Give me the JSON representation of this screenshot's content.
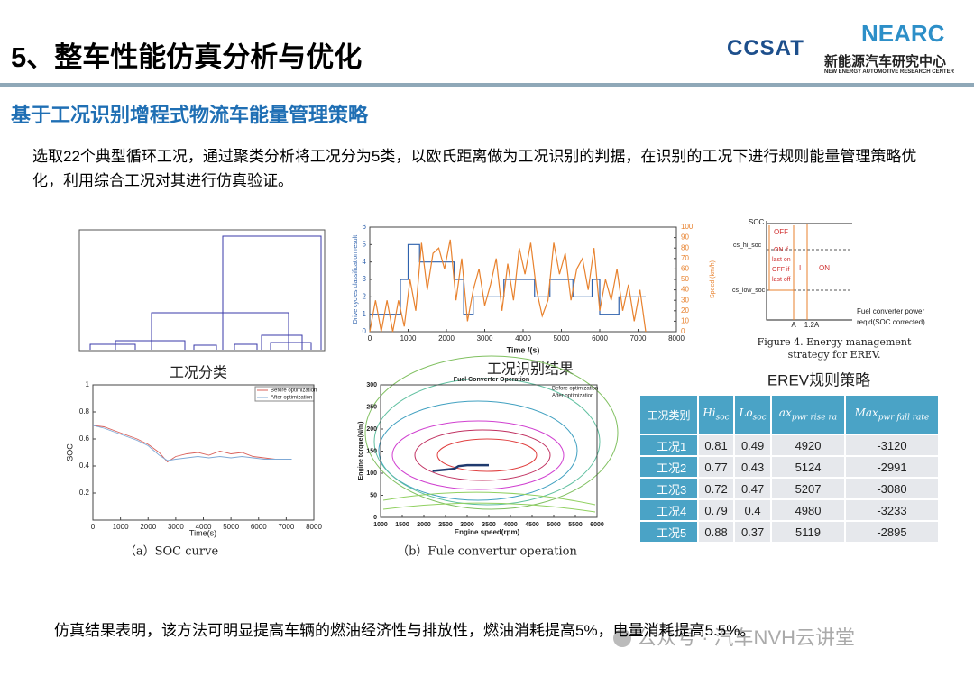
{
  "header": {
    "title": "5、整车性能仿真分析与优化",
    "logo_left": "CCSAT",
    "logo_right": "NEARC",
    "org_cn": "新能源汽车研究中心",
    "org_en": "NEW ENERGY AUTOMOTIVE RESEARCH CENTER"
  },
  "subtitle": "基于工况识别增程式物流车能量管理策略",
  "intro": "选取22个典型循环工况，通过聚类分析将工况分为5类，以欧氏距离做为工况识别的判据，在识别的工况下进行规则能量管理策略优化，利用综合工况对其进行仿真验证。",
  "figures": {
    "cluster": {
      "caption": "工况分类"
    },
    "drive_cycle": {
      "caption": "工况识别结果",
      "y_label": "Drive cycles classification result",
      "y2_label": "Speed (km/h)",
      "x_label": "Time /(s)",
      "xlim": [
        0,
        8000
      ],
      "xticks": [
        0,
        1000,
        2000,
        3000,
        4000,
        5000,
        6000,
        7000,
        8000
      ],
      "ylim": [
        0,
        6
      ],
      "yticks": [
        0,
        1,
        2,
        3,
        4,
        5,
        6
      ],
      "y2lim": [
        0,
        100
      ],
      "y2ticks": [
        0,
        10,
        20,
        30,
        40,
        50,
        60,
        70,
        80,
        90,
        100
      ],
      "series": [
        {
          "color": "#2f62ad",
          "x": [
            0,
            800,
            800,
            1000,
            1000,
            1300,
            1300,
            2200,
            2200,
            2450,
            2450,
            2700,
            2700,
            3500,
            3500,
            4300,
            4300,
            4700,
            4700,
            5300,
            5300,
            5800,
            5800,
            6000,
            6000,
            6500,
            6500,
            7200
          ],
          "values": [
            1,
            1,
            3,
            3,
            5,
            5,
            4,
            4,
            3,
            3,
            1,
            1,
            2,
            2,
            3,
            3,
            2,
            2,
            3,
            3,
            2,
            2,
            3,
            3,
            1,
            1,
            2,
            2
          ]
        },
        {
          "color": "#e8822e",
          "axis": "y2",
          "x": [
            0,
            150,
            300,
            450,
            600,
            750,
            900,
            1050,
            1200,
            1350,
            1500,
            1650,
            1800,
            1950,
            2100,
            2250,
            2400,
            2550,
            2700,
            2850,
            3000,
            3150,
            3300,
            3450,
            3600,
            3750,
            3900,
            4050,
            4200,
            4350,
            4500,
            4650,
            4800,
            4950,
            5100,
            5250,
            5400,
            5550,
            5700,
            5850,
            6000,
            6150,
            6300,
            6450,
            6600,
            6750,
            6900,
            7050,
            7200
          ],
          "values": [
            0,
            30,
            0,
            30,
            0,
            30,
            5,
            50,
            20,
            85,
            40,
            75,
            80,
            60,
            88,
            30,
            70,
            10,
            40,
            60,
            25,
            45,
            70,
            20,
            65,
            30,
            80,
            55,
            85,
            40,
            15,
            30,
            85,
            55,
            75,
            30,
            60,
            70,
            40,
            80,
            20,
            50,
            30,
            60,
            20,
            45,
            10,
            40,
            0
          ]
        }
      ]
    },
    "strategy": {
      "caption": "EREV规则策略",
      "soc": "SOC",
      "off": "OFF",
      "on_if": [
        "ON if",
        "last on",
        "OFF if",
        "last off"
      ],
      "i": "I",
      "on": "ON",
      "hi": "cs_hi_soc",
      "low": "cs_low_soc",
      "a": "A",
      "a12": "1.2A",
      "x_label": [
        "Fuel converter power",
        "req'd(SOC corrected)"
      ],
      "figure_caption": [
        "Figure 4. Energy management",
        "strategy for EREV."
      ]
    },
    "soc": {
      "caption": "（a）SOC curve",
      "x_label": "Time(s)",
      "y_label": "SOC",
      "xlim": [
        0,
        8000
      ],
      "xticks": [
        0,
        1000,
        2000,
        3000,
        4000,
        5000,
        6000,
        7000,
        8000
      ],
      "ylim": [
        0,
        1
      ],
      "yticks": [
        0.2,
        0.4,
        0.6,
        0.8,
        1
      ],
      "series": [
        {
          "name": "Before optimization",
          "color": "#d9605a",
          "x": [
            0,
            400,
            800,
            1200,
            1600,
            2000,
            2400,
            2700,
            3000,
            3400,
            3800,
            4200,
            4600,
            5000,
            5400,
            5800,
            6200,
            6600,
            7200
          ],
          "values": [
            0.7,
            0.69,
            0.66,
            0.63,
            0.6,
            0.56,
            0.5,
            0.43,
            0.47,
            0.49,
            0.5,
            0.48,
            0.51,
            0.49,
            0.5,
            0.47,
            0.46,
            0.45,
            0.45
          ]
        },
        {
          "name": "After optimization",
          "color": "#7fa9d6",
          "x": [
            0,
            400,
            800,
            1200,
            1600,
            2000,
            2400,
            2700,
            3000,
            3400,
            3800,
            4200,
            4600,
            5000,
            5400,
            5800,
            6200,
            6600,
            7200
          ],
          "values": [
            0.7,
            0.68,
            0.65,
            0.62,
            0.59,
            0.55,
            0.48,
            0.44,
            0.45,
            0.46,
            0.47,
            0.46,
            0.47,
            0.46,
            0.47,
            0.46,
            0.45,
            0.45,
            0.45
          ]
        }
      ]
    },
    "fuel": {
      "caption": "（b）Fule convertur operation",
      "title": "Fuel Converter Operation",
      "x_label": "Engine speed(rpm)",
      "y_label": "Engine torque(N/m)",
      "legend": [
        "Before optimization",
        "After optimization"
      ],
      "xlim": [
        1000,
        6000
      ],
      "xticks": [
        1000,
        1500,
        2000,
        2500,
        3000,
        3500,
        4000,
        4500,
        5000,
        5500,
        6000
      ],
      "ylim": [
        0,
        300
      ],
      "yticks": [
        0,
        50,
        100,
        150,
        200,
        250,
        300
      ],
      "series": [
        {
          "color": "#1f3a6e",
          "x": [
            2200,
            2500,
            2700,
            2800,
            3000,
            3500
          ],
          "values": [
            105,
            108,
            110,
            116,
            118,
            118
          ]
        }
      ]
    }
  },
  "table": {
    "header": [
      {
        "main": "工况类别"
      },
      {
        "main": "Hi",
        "sub": "soc"
      },
      {
        "main": "Lo",
        "sub": "soc"
      },
      {
        "main": "ax",
        "sub": "pwr rise ra"
      },
      {
        "main": "Max",
        "sub": "pwr fall rate"
      }
    ],
    "rows": [
      [
        "工况1",
        0.81,
        0.49,
        4920,
        -3120
      ],
      [
        "工况2",
        0.77,
        0.43,
        5124,
        -2991
      ],
      [
        "工况3",
        0.72,
        0.47,
        5207,
        -3080
      ],
      [
        "工况4",
        0.79,
        0.4,
        4980,
        -3233
      ],
      [
        "工况5",
        0.88,
        0.37,
        5119,
        -2895
      ]
    ]
  },
  "conclusion": "仿真结果表明，该方法可明显提高车辆的燃油经济性与排放性，燃油消耗提高5%，电量消耗提高5.5%。",
  "watermark": "公众号 · 汽车NVH云讲堂"
}
